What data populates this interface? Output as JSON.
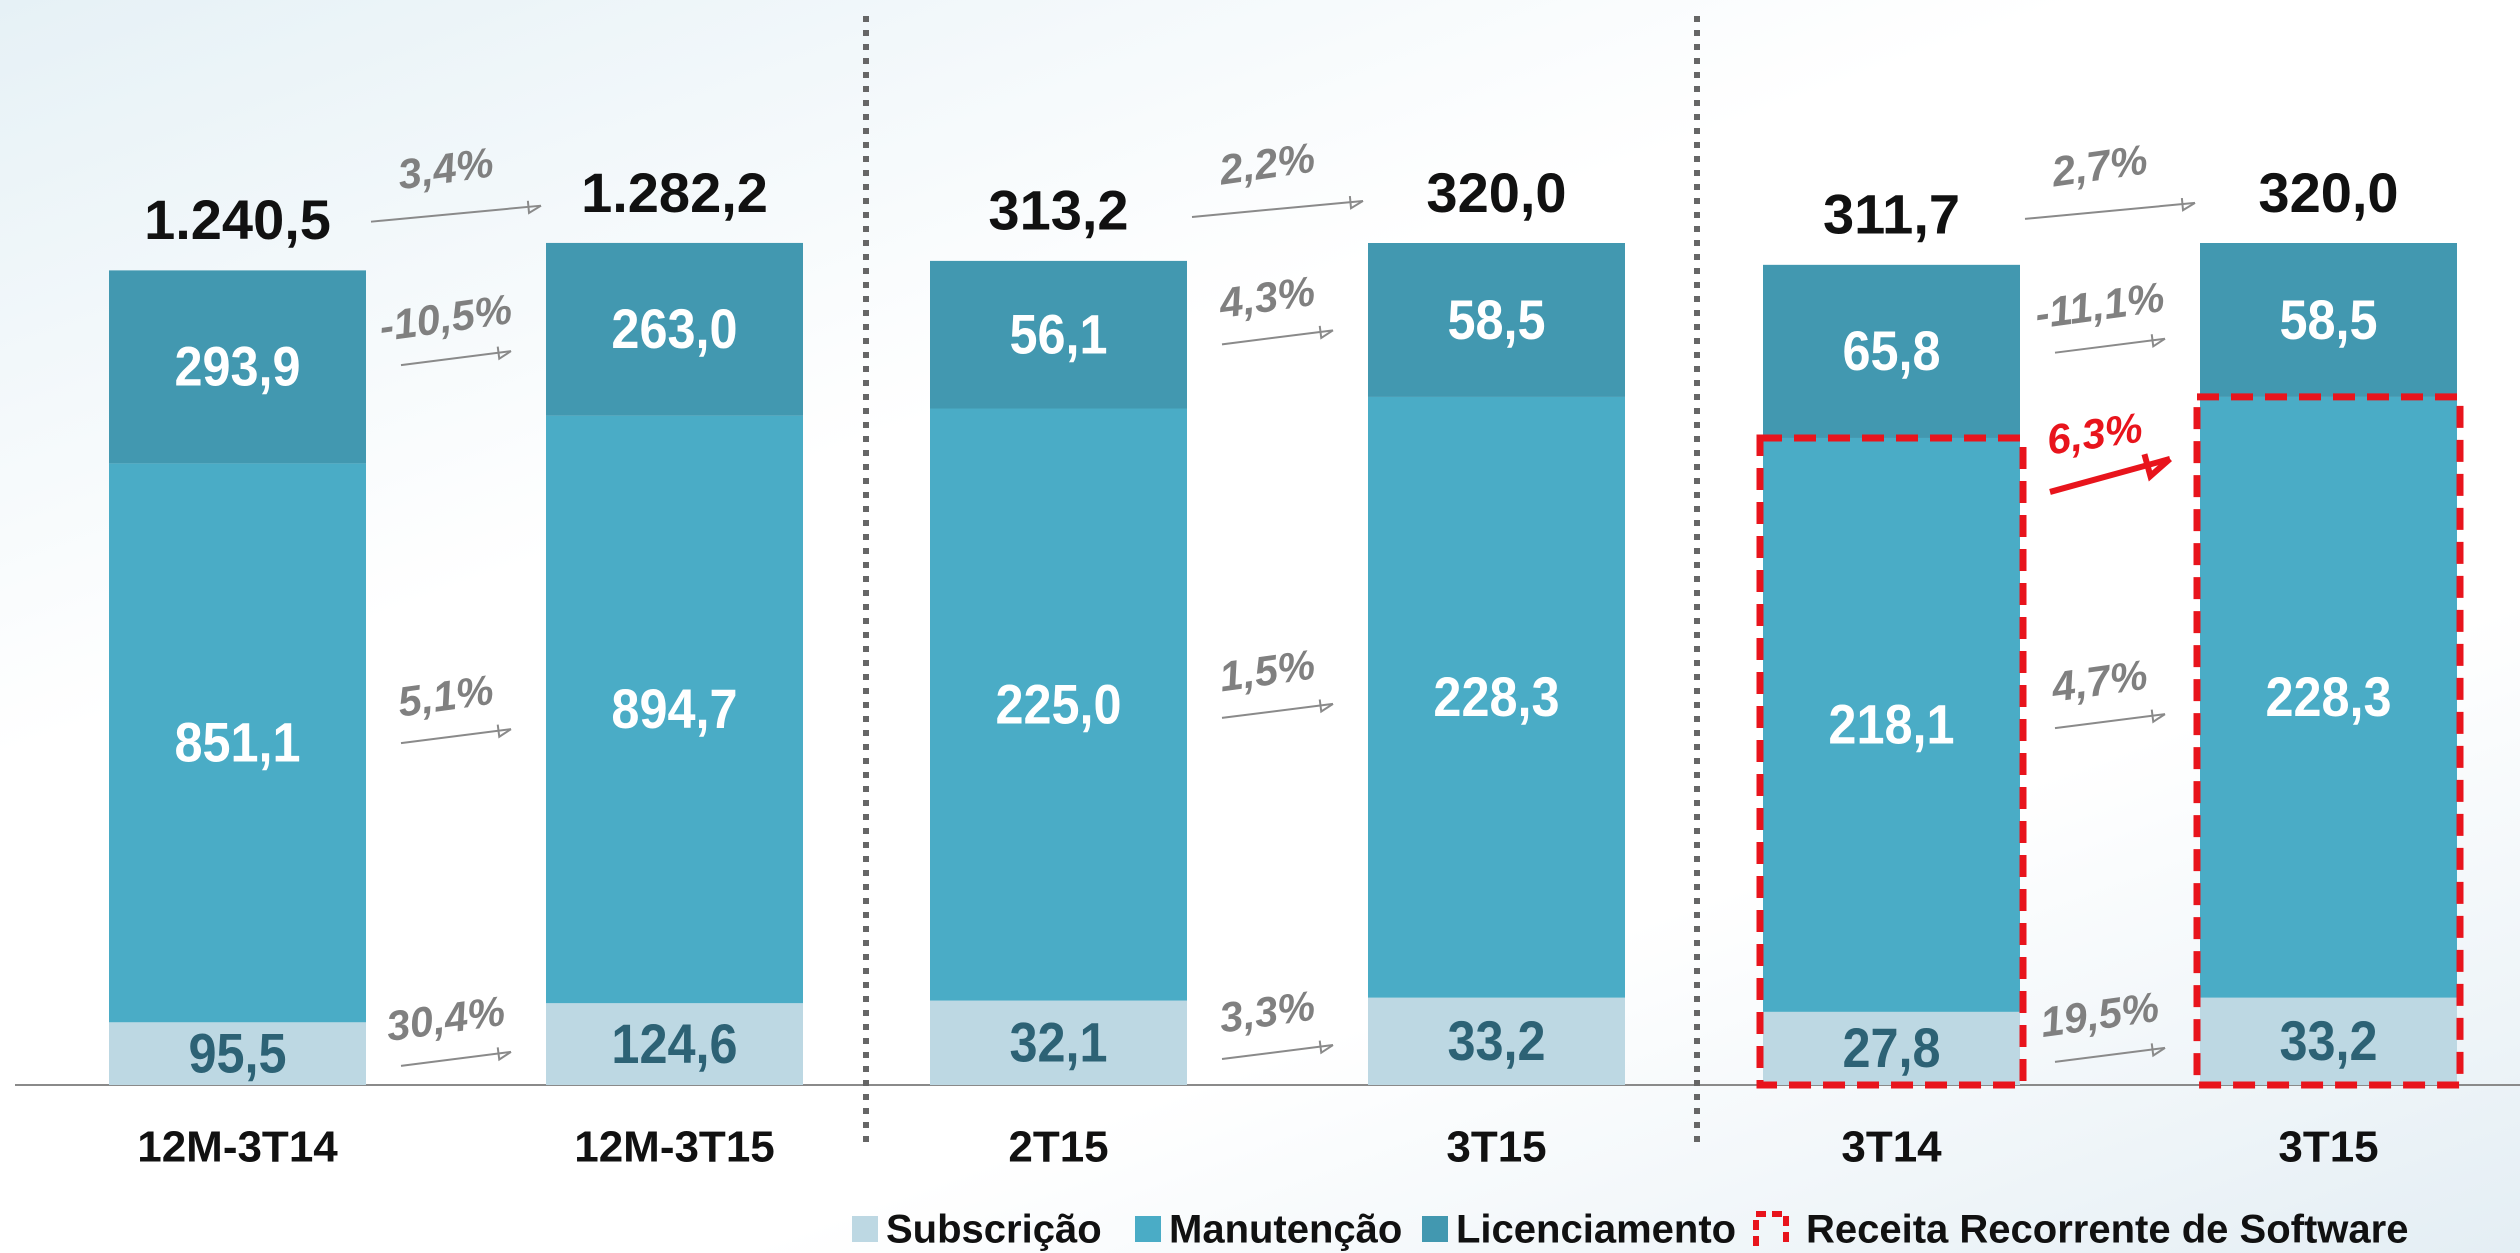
{
  "chart_data": [
    {
      "type": "bar",
      "stacked": true,
      "categories": [
        "12M-3T14",
        "12M-3T15"
      ],
      "series": [
        {
          "name": "Subscrição",
          "color": "#bdd8e3",
          "values": [
            95.5,
            124.6
          ],
          "value_labels": [
            "95,5",
            "124,6"
          ]
        },
        {
          "name": "Manutenção",
          "color": "#4aacc6",
          "values": [
            851.1,
            894.7
          ],
          "value_labels": [
            "851,1",
            "894,7"
          ]
        },
        {
          "name": "Licenciamento",
          "color": "#4298b0",
          "values": [
            293.9,
            263.0
          ],
          "value_labels": [
            "293,9",
            "263,0"
          ]
        }
      ],
      "totals": [
        1240.5,
        1282.2
      ],
      "total_labels": [
        "1.240,5",
        "1.282,2"
      ],
      "growth": [
        "30,4%",
        "5,1%",
        "-10,5%"
      ],
      "growth_total": "3,4%"
    },
    {
      "type": "bar",
      "stacked": true,
      "categories": [
        "2T15",
        "3T15"
      ],
      "series": [
        {
          "name": "Subscrição",
          "color": "#bdd8e3",
          "values": [
            32.1,
            33.2
          ],
          "value_labels": [
            "32,1",
            "33,2"
          ]
        },
        {
          "name": "Manutenção",
          "color": "#4aacc6",
          "values": [
            225.0,
            228.3
          ],
          "value_labels": [
            "225,0",
            "228,3"
          ]
        },
        {
          "name": "Licenciamento",
          "color": "#4298b0",
          "values": [
            56.1,
            58.5
          ],
          "value_labels": [
            "56,1",
            "58,5"
          ]
        }
      ],
      "totals": [
        313.2,
        320.0
      ],
      "total_labels": [
        "313,2",
        "320,0"
      ],
      "growth": [
        "3,3%",
        "1,5%",
        "4,3%"
      ],
      "growth_total": "2,2%"
    },
    {
      "type": "bar",
      "stacked": true,
      "categories": [
        "3T14",
        "3T15"
      ],
      "series": [
        {
          "name": "Subscrição",
          "color": "#bdd8e3",
          "values": [
            27.8,
            33.2
          ],
          "value_labels": [
            "27,8",
            "33,2"
          ]
        },
        {
          "name": "Manutenção",
          "color": "#4aacc6",
          "values": [
            218.1,
            228.3
          ],
          "value_labels": [
            "218,1",
            "228,3"
          ]
        },
        {
          "name": "Licenciamento",
          "color": "#4298b0",
          "values": [
            65.8,
            58.5
          ],
          "value_labels": [
            "65,8",
            "58,5"
          ]
        }
      ],
      "totals": [
        311.7,
        320.0
      ],
      "total_labels": [
        "311,7",
        "320,0"
      ],
      "growth": [
        "19,5%",
        "4,7%",
        "-11,1%"
      ],
      "growth_total": "2,7%",
      "highlight": {
        "label": "Receita Recorrente de Software",
        "color": "#e8141c",
        "growth": "6,3%"
      }
    }
  ]
}
